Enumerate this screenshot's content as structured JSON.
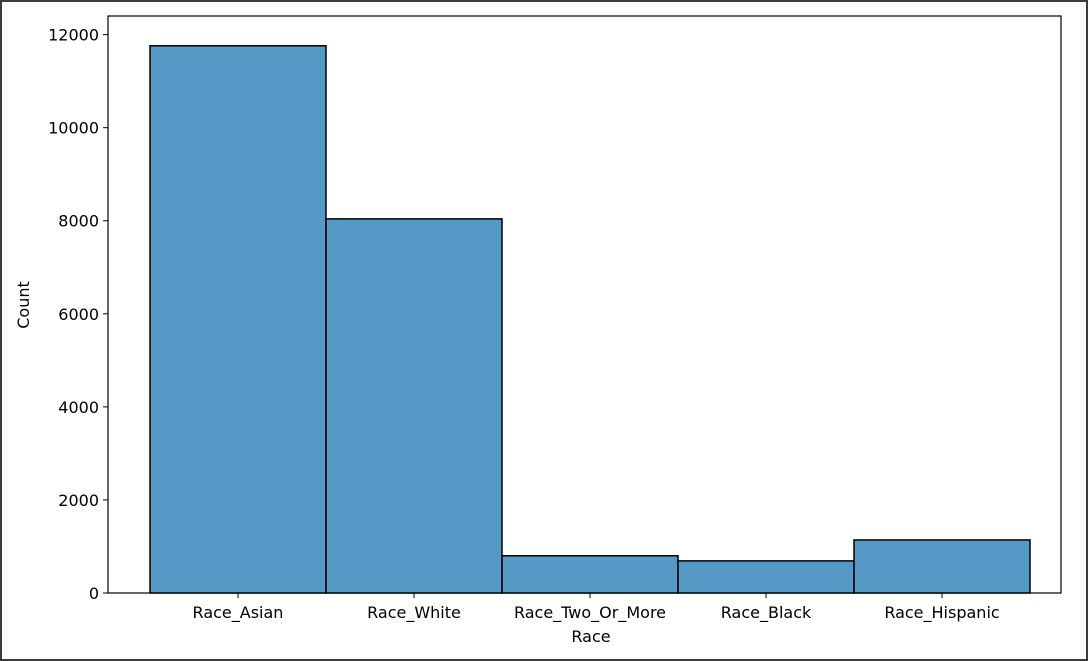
{
  "chart_data": {
    "type": "bar",
    "title": "",
    "xlabel": "Race",
    "ylabel": "Count",
    "categories": [
      "Race_Asian",
      "Race_White",
      "Race_Two_Or_More",
      "Race_Black",
      "Race_Hispanic"
    ],
    "values": [
      11760,
      8040,
      800,
      690,
      1140
    ],
    "ylim": [
      0,
      12400
    ],
    "yticks": [
      0,
      2000,
      4000,
      6000,
      8000,
      10000,
      12000
    ],
    "ytick_labels": [
      "0",
      "2000",
      "4000",
      "6000",
      "8000",
      "10000",
      "12000"
    ],
    "bar_color": "#5799c6",
    "edge_color": "#000000",
    "grid": false,
    "legend": false
  }
}
